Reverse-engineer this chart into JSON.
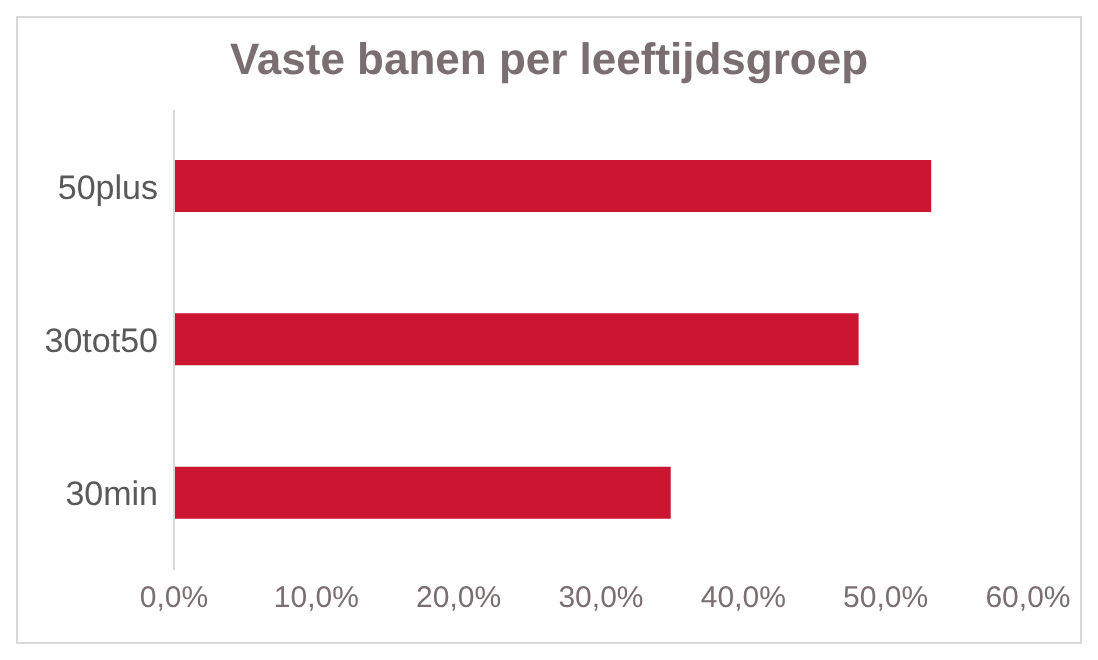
{
  "chart_data": {
    "type": "bar",
    "title": "Vaste banen per leeftijdsgroep",
    "orientation": "horizontal",
    "categories": [
      "50plus",
      "30tot50",
      "30min"
    ],
    "values": [
      53.2,
      48.1,
      34.9
    ],
    "color": "#cc1530",
    "xlim": [
      0,
      60
    ],
    "xticks": [
      {
        "value": 0,
        "label": "0,0%"
      },
      {
        "value": 10,
        "label": "10,0%"
      },
      {
        "value": 20,
        "label": "20,0%"
      },
      {
        "value": 30,
        "label": "30,0%"
      },
      {
        "value": 40,
        "label": "40,0%"
      },
      {
        "value": 50,
        "label": "50,0%"
      },
      {
        "value": 60,
        "label": "60,0%"
      }
    ],
    "grid": false
  }
}
